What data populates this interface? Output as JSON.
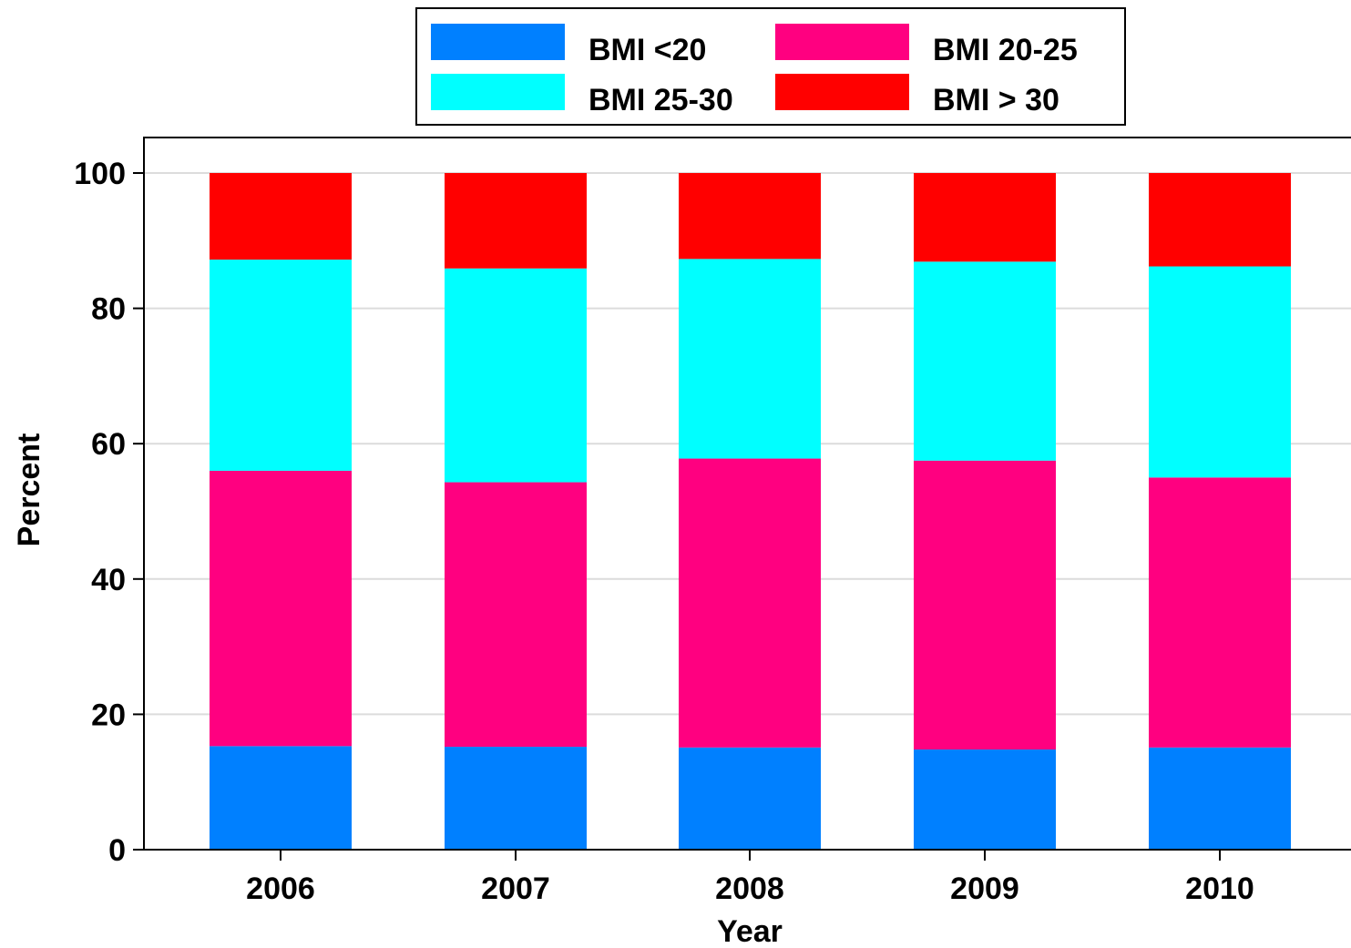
{
  "chart_data": {
    "type": "bar",
    "stacked": true,
    "title": "",
    "xlabel": "Year",
    "ylabel": "Percent",
    "ylim": [
      0,
      100
    ],
    "yticks": [
      0,
      20,
      40,
      60,
      80,
      100
    ],
    "grid": true,
    "legend_position": "top-center",
    "categories": [
      "2006",
      "2007",
      "2008",
      "2009",
      "2010"
    ],
    "series": [
      {
        "name": "BMI <20",
        "color": "#0080ff",
        "values": [
          15.3,
          15.2,
          15.1,
          14.8,
          15.1
        ]
      },
      {
        "name": "BMI 20-25",
        "color": "#ff0080",
        "values": [
          40.7,
          39.1,
          42.7,
          42.7,
          39.9
        ]
      },
      {
        "name": "BMI 25-30",
        "color": "#00ffff",
        "values": [
          31.2,
          31.6,
          29.5,
          29.4,
          31.2
        ]
      },
      {
        "name": "BMI > 30",
        "color": "#ff0000",
        "values": [
          12.8,
          14.1,
          12.7,
          13.1,
          13.8
        ]
      }
    ]
  }
}
